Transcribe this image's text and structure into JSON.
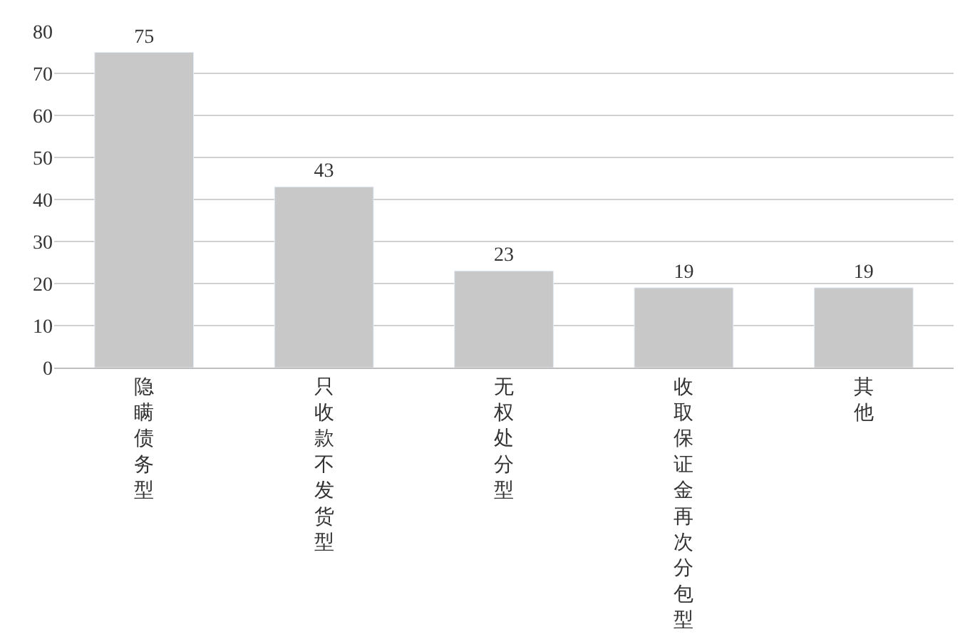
{
  "chart_data": {
    "type": "bar",
    "categories": [
      "隐瞒债务型",
      "只收款不发货型",
      "无权处分型",
      "收取保证金再次分包型",
      "其他"
    ],
    "values": [
      75,
      43,
      23,
      19,
      19
    ],
    "color": "#c8c8c8",
    "ylim": [
      0,
      80
    ],
    "yticks": [
      0,
      10,
      20,
      30,
      40,
      50,
      60,
      70,
      80
    ],
    "grid": "y",
    "data_labels": true,
    "legend": false
  }
}
